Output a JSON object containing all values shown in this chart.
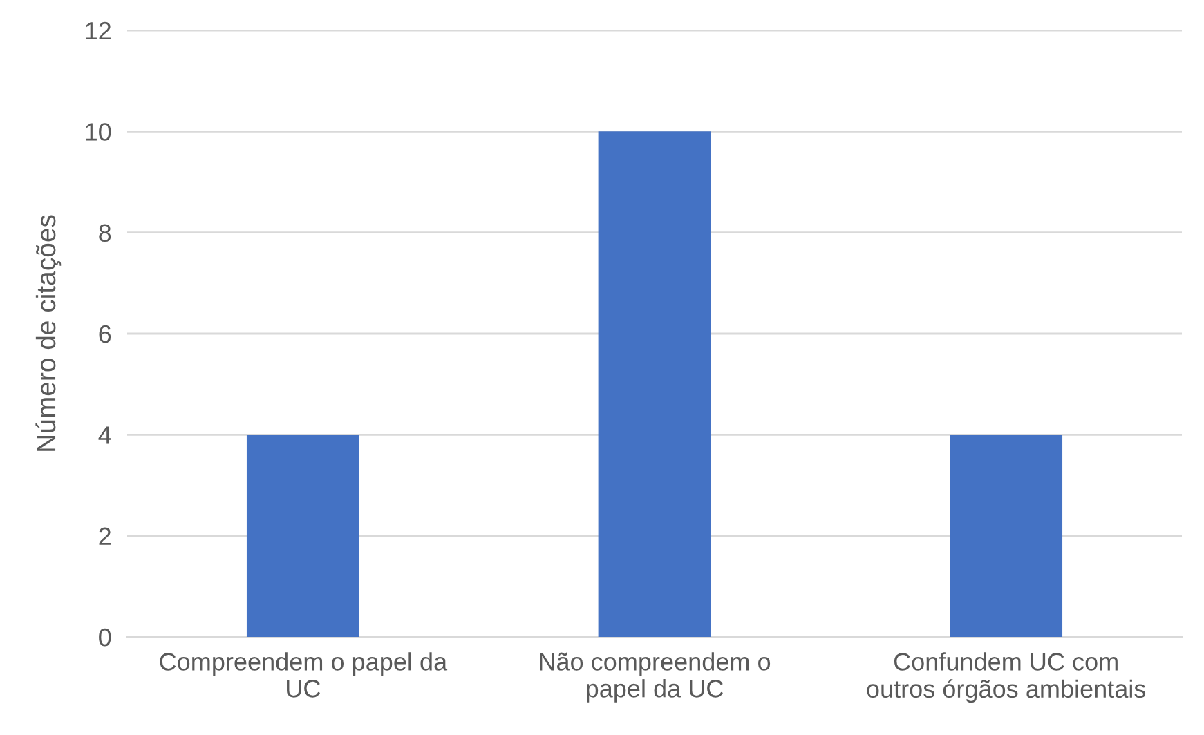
{
  "chart_data": {
    "type": "bar",
    "ylabel": "Número de citações",
    "categories": [
      "Compreendem o papel da\nUC",
      "Não compreendem o\npapel da UC",
      "Confundem UC com\noutros órgãos ambientais"
    ],
    "values": [
      4,
      10,
      4
    ],
    "color": "#4472c4",
    "ylim": [
      0,
      12
    ],
    "yticks": [
      0,
      2,
      4,
      6,
      8,
      10,
      12
    ],
    "grid": "y",
    "legend": false
  }
}
